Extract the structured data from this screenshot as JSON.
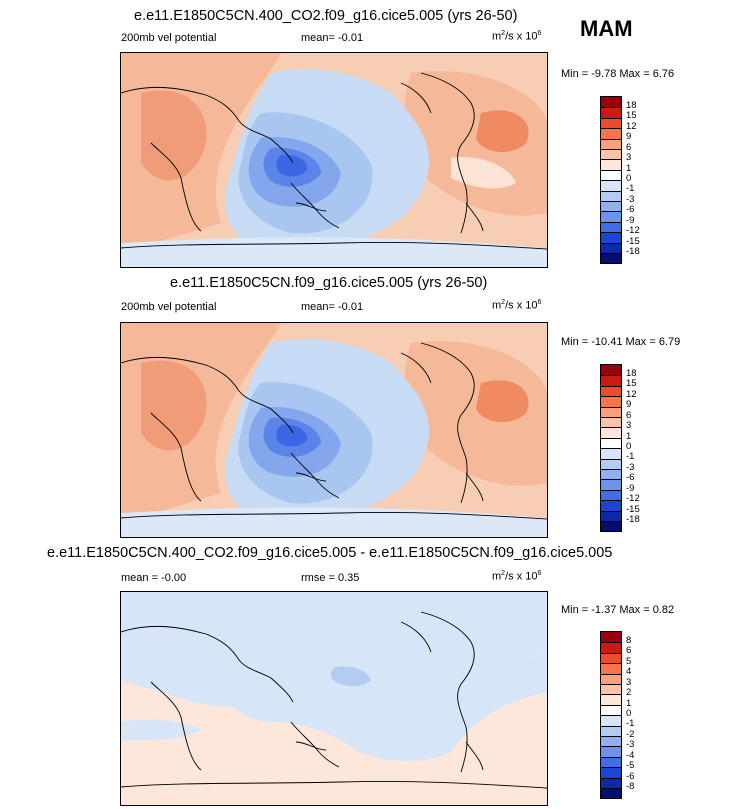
{
  "season": "MAM",
  "panels": [
    {
      "title": "e.e11.E1850C5CN.400_CO2.f09_g16.cice5.005 (yrs 26-50)",
      "left_label": "200mb vel potential",
      "mean_label": "mean=  -0.01",
      "units_base": "m",
      "units_exp": "2",
      "units_mid": "/s x 10",
      "units_pow": "6",
      "minmax": "Min =  -9.78 Max =   6.76",
      "levels": [
        "18",
        "15",
        "12",
        "9",
        "6",
        "3",
        "1",
        "0",
        "-1",
        "-3",
        "-6",
        "-9",
        "-12",
        "-15",
        "-18"
      ]
    },
    {
      "title": "e.e11.E1850C5CN.f09_g16.cice5.005 (yrs 26-50)",
      "left_label": "200mb vel potential",
      "mean_label": "mean=  -0.01",
      "units_base": "m",
      "units_exp": "2",
      "units_mid": "/s x 10",
      "units_pow": "6",
      "minmax": "Min = -10.41 Max =   6.79",
      "levels": [
        "18",
        "15",
        "12",
        "9",
        "6",
        "3",
        "1",
        "0",
        "-1",
        "-3",
        "-6",
        "-9",
        "-12",
        "-15",
        "-18"
      ]
    },
    {
      "title": "e.e11.E1850C5CN.400_CO2.f09_g16.cice5.005 - e.e11.E1850C5CN.f09_g16.cice5.005",
      "left_label": "mean =  -0.00",
      "mean_label": "rmse =   0.35",
      "units_base": "m",
      "units_exp": "2",
      "units_mid": "/s x 10",
      "units_pow": "6",
      "minmax": "Min =  -1.37 Max =   0.82",
      "levels": [
        "8",
        "6",
        "5",
        "4",
        "3",
        "2",
        "1",
        "0",
        "-1",
        "-2",
        "-3",
        "-4",
        "-5",
        "-6",
        "-8"
      ]
    }
  ],
  "colorbar_colors": [
    "#99000d",
    "#cb1a12",
    "#ef4a2b",
    "#f7744d",
    "#f9a07c",
    "#fbc4a8",
    "#fde6da",
    "#ffffff",
    "#d6e6f8",
    "#b3cdf2",
    "#8fb1ee",
    "#6b94ea",
    "#3f6fe8",
    "#1c45d4",
    "#0b2aa3",
    "#020f6b"
  ]
}
